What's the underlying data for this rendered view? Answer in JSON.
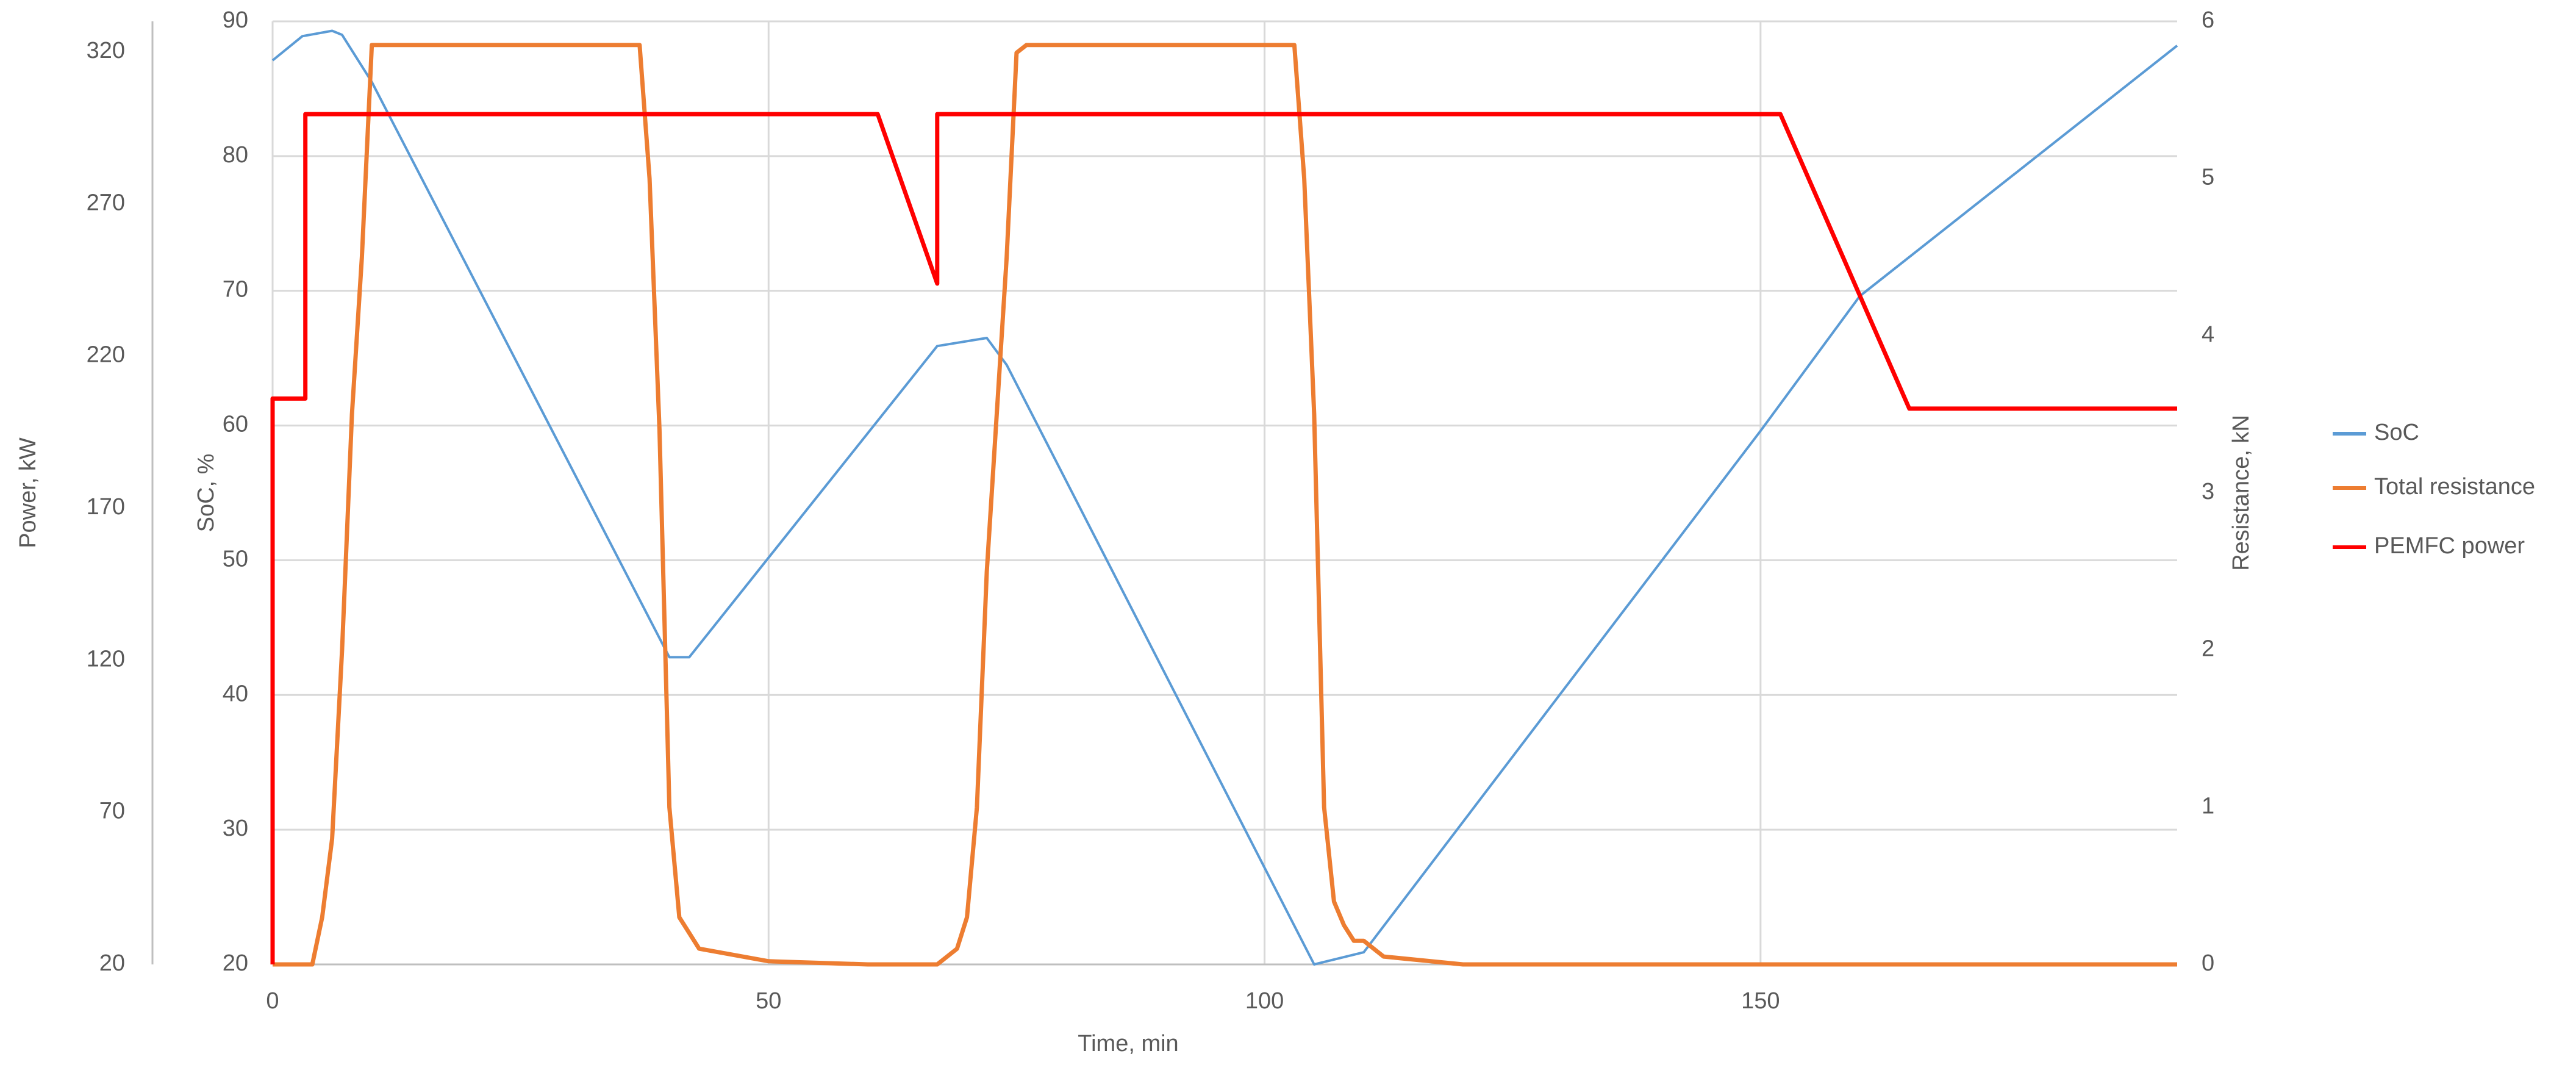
{
  "chart_data": {
    "type": "line",
    "xlabel": "Time, min",
    "ylabel": "SoC, %",
    "y2label": "Resistance, kN",
    "y3label": "Power, kW",
    "xlim": [
      0,
      192
    ],
    "xticks": [
      0,
      50,
      100,
      150
    ],
    "ylim": [
      20,
      90
    ],
    "yticks": [
      20,
      30,
      40,
      50,
      60,
      70,
      80,
      90
    ],
    "y2lim": [
      0,
      6
    ],
    "y2ticks": [
      0,
      1,
      2,
      3,
      4,
      5,
      6
    ],
    "y3lim": [
      20,
      330
    ],
    "y3ticks": [
      20,
      70,
      120,
      170,
      220,
      270,
      320
    ],
    "grid": true,
    "legend": "right",
    "series": [
      {
        "name": "SoC",
        "color": "#5b9bd5",
        "axis": "y",
        "x": [
          0,
          3,
          6,
          7,
          10,
          40,
          42,
          67,
          72,
          74,
          105,
          110,
          150,
          160,
          192
        ],
        "values": [
          87.1,
          88.9,
          89.3,
          89,
          85.5,
          42.8,
          42.8,
          65.9,
          66.5,
          64.5,
          20,
          20.9,
          59.6,
          69.6,
          88.2
        ]
      },
      {
        "name": "Total resistance",
        "color": "#ed7d31",
        "axis": "y2",
        "x": [
          0,
          4,
          5,
          6,
          7,
          8,
          9,
          10,
          37,
          38,
          39,
          40,
          41,
          43,
          50,
          60,
          67,
          69,
          70,
          71,
          72,
          73,
          74,
          75,
          76,
          103,
          104,
          105,
          106,
          107,
          108,
          109,
          110,
          112,
          120,
          192
        ],
        "values": [
          0,
          0,
          0.3,
          0.8,
          2,
          3.5,
          4.5,
          5.85,
          5.85,
          5,
          3.4,
          1,
          0.3,
          0.1,
          0.02,
          0,
          0,
          0.1,
          0.3,
          1,
          2.5,
          3.5,
          4.5,
          5.8,
          5.85,
          5.85,
          5,
          3.5,
          1,
          0.4,
          0.25,
          0.15,
          0.15,
          0.05,
          0,
          0
        ]
      },
      {
        "name": "PEMFC power",
        "color": "#ff0000",
        "axis": "y3",
        "x": [
          0,
          0,
          3.3,
          3.3,
          61,
          67,
          67,
          152,
          165,
          192
        ],
        "values": [
          20,
          206,
          206,
          299.5,
          299.5,
          243.8,
          299.5,
          299.5,
          202.7,
          202.7
        ]
      }
    ]
  }
}
